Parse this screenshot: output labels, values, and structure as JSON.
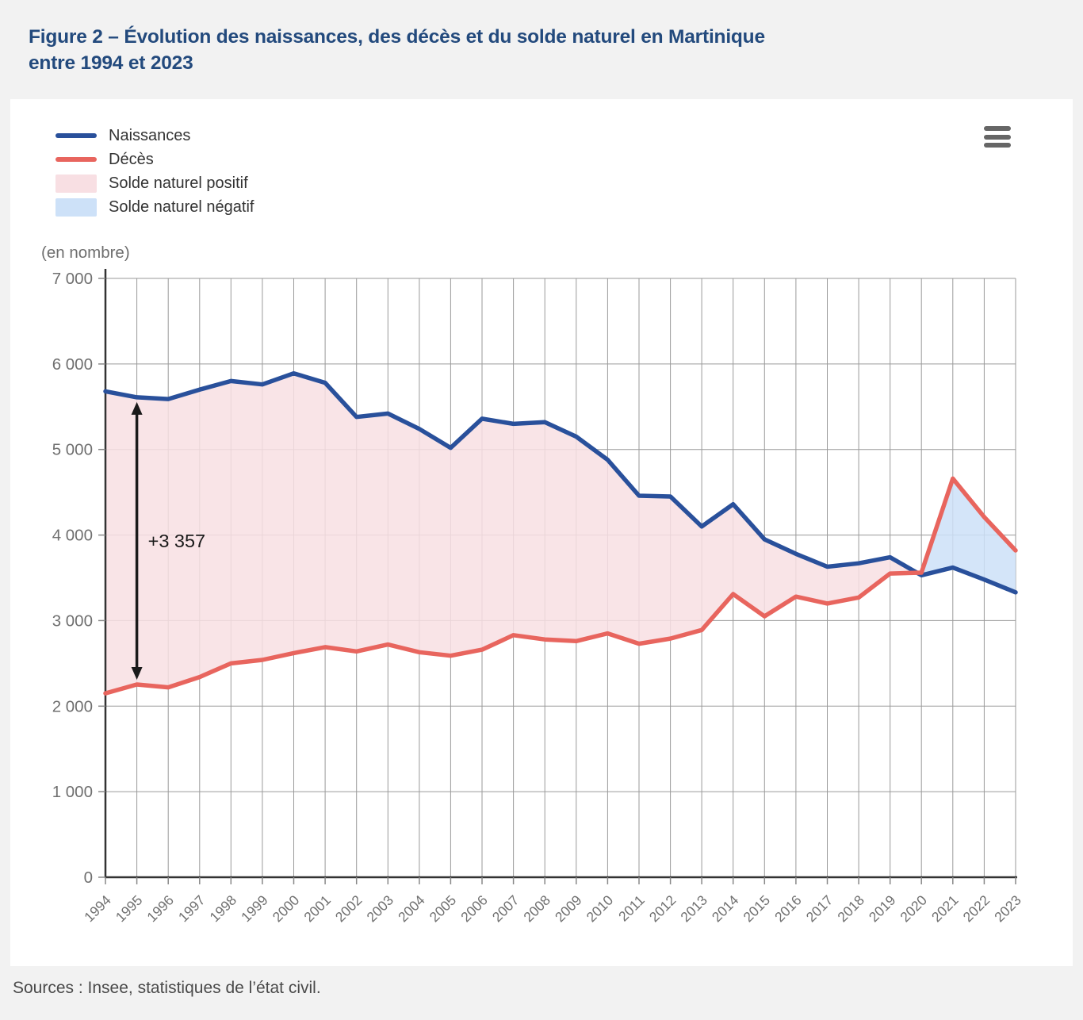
{
  "page": {
    "title_line1": "Figure 2 – Évolution des naissances, des décès et du solde naturel en Martinique",
    "title_line2": "entre 1994 et 2023",
    "source": "Sources : Insee, statistiques de l’état civil.",
    "unit_label": "(en nombre)"
  },
  "colors": {
    "births_line": "#29509b",
    "deaths_line": "#e8655e",
    "positive_fill": "#f8dfe3",
    "negative_fill": "#cde1f8",
    "grid": "#9a9a9a",
    "axis": "#333333",
    "tick": "#888888",
    "axis_label": "#707070",
    "title": "#234a7d",
    "annotation": "#1a1a1a",
    "menu_icon": "#666666",
    "card_bg": "#ffffff",
    "page_bg": "#f2f2f2"
  },
  "legend": {
    "items": [
      {
        "key": "naissances",
        "label": "Naissances",
        "type": "line",
        "color": "#29509b"
      },
      {
        "key": "deces",
        "label": "Décès",
        "type": "line",
        "color": "#e8655e"
      },
      {
        "key": "solde-positif",
        "label": "Solde naturel positif",
        "type": "area",
        "color": "#f8dfe3"
      },
      {
        "key": "solde-negatif",
        "label": "Solde naturel négatif",
        "type": "area",
        "color": "#cde1f8"
      }
    ]
  },
  "chart_data": {
    "type": "line",
    "title": "",
    "xlabel": "",
    "ylabel": "(en nombre)",
    "grid": true,
    "legend_position": "top-left",
    "ylim": [
      0,
      7000
    ],
    "ytick_interval": 1000,
    "ytick_labels": [
      "0",
      "1 000",
      "2 000",
      "3 000",
      "4 000",
      "5 000",
      "6 000",
      "7 000"
    ],
    "categories": [
      1994,
      1995,
      1996,
      1997,
      1998,
      1999,
      2000,
      2001,
      2002,
      2003,
      2004,
      2005,
      2006,
      2007,
      2008,
      2009,
      2010,
      2011,
      2012,
      2013,
      2014,
      2015,
      2016,
      2017,
      2018,
      2019,
      2020,
      2021,
      2022,
      2023
    ],
    "series": [
      {
        "name": "Naissances",
        "color": "#29509b",
        "values": [
          5680,
          5610,
          5590,
          5700,
          5800,
          5760,
          5890,
          5780,
          5380,
          5420,
          5240,
          5020,
          5360,
          5300,
          5320,
          5150,
          4880,
          4460,
          4450,
          4100,
          4360,
          3950,
          3780,
          3630,
          3670,
          3740,
          3530,
          3620,
          3480,
          3330
        ]
      },
      {
        "name": "Décès",
        "color": "#e8655e",
        "values": [
          2150,
          2253,
          2220,
          2340,
          2500,
          2540,
          2620,
          2690,
          2640,
          2720,
          2630,
          2590,
          2660,
          2830,
          2780,
          2760,
          2850,
          2730,
          2790,
          2890,
          3310,
          3050,
          3280,
          3200,
          3270,
          3550,
          3560,
          4660,
          4210,
          3820
        ]
      }
    ],
    "area_between": {
      "positive_label": "Solde naturel positif",
      "positive_color": "#f8dfe3",
      "negative_label": "Solde naturel négatif",
      "negative_color": "#cde1f8"
    },
    "annotation": {
      "label": "+3 357",
      "year": 1995,
      "from_value": 5610,
      "to_value": 2253
    }
  }
}
